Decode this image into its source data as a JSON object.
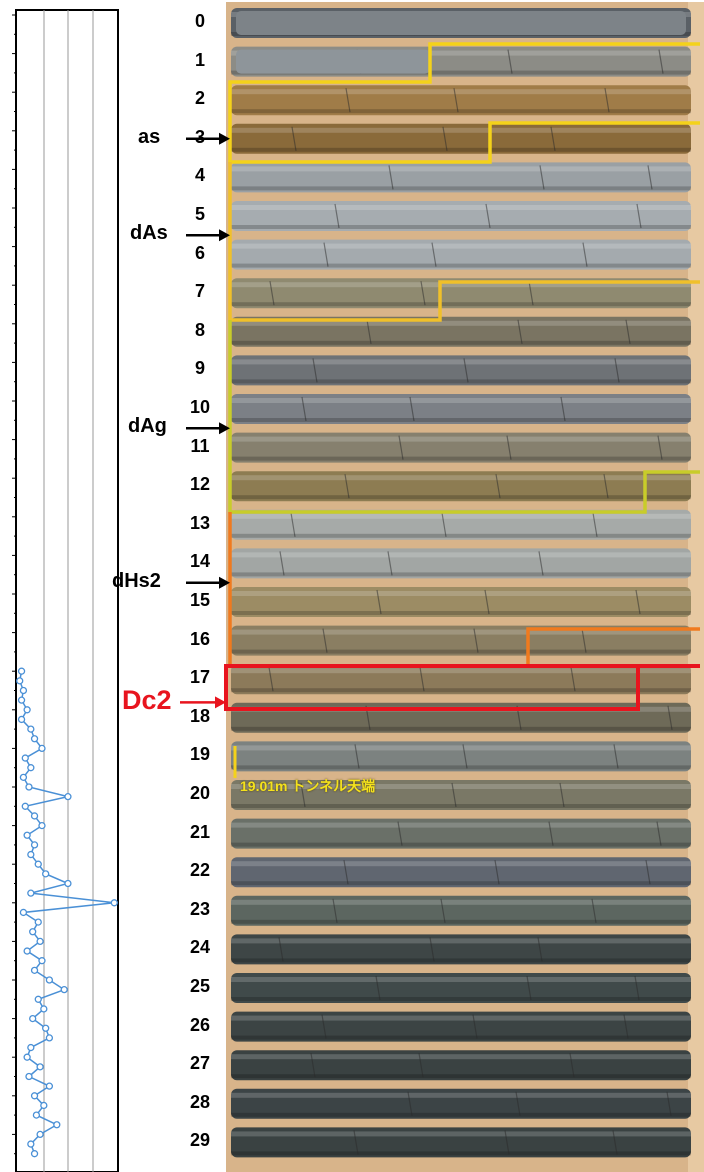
{
  "depth_labels": [
    "0",
    "1",
    "2",
    "3",
    "4",
    "5",
    "6",
    "7",
    "8",
    "9",
    "10",
    "11",
    "12",
    "13",
    "14",
    "15",
    "16",
    "17",
    "18",
    "19",
    "20",
    "21",
    "22",
    "23",
    "24",
    "25",
    "26",
    "27",
    "28",
    "29"
  ],
  "units": [
    {
      "label": "as",
      "arrow_depth": 3
    },
    {
      "label": "dAs",
      "arrow_depth": 5.5
    },
    {
      "label": "dAg",
      "arrow_depth": 10.5
    },
    {
      "label": "dHs2",
      "arrow_depth": 14.5
    },
    {
      "label": "Dc2",
      "arrow_depth": 17.6
    }
  ],
  "tunnel_note": "19.01m トンネル天端",
  "colors": {
    "as_boundary": "#f4d21a",
    "dAs_boundary": "#f0c02a",
    "dAg_boundary": "#c8cc2a",
    "dHs2_boundary": "#f07a1e",
    "Dc2_boundary": "#e8141e",
    "plot_line": "#4a90d6",
    "box_frame": "#c9905a"
  },
  "chart_data": {
    "type": "line",
    "orientation": "vertical",
    "title": "",
    "xlabel": "",
    "ylabel": "",
    "y": [
      17.0,
      17.25,
      17.5,
      17.75,
      18.0,
      18.25,
      18.5,
      18.75,
      19.0,
      19.25,
      19.5,
      19.75,
      20.0,
      20.25,
      20.5,
      20.75,
      21.0,
      21.25,
      21.5,
      21.75,
      22.0,
      22.25,
      22.5,
      22.75,
      23.0,
      23.25,
      23.5,
      23.75,
      24.0,
      24.25,
      24.5,
      24.75,
      25.0,
      25.25,
      25.5,
      25.75,
      26.0,
      26.25,
      26.5,
      26.75,
      27.0,
      27.25,
      27.5,
      27.75,
      28.0,
      28.25,
      28.5,
      28.75,
      29.0,
      29.25,
      29.5
    ],
    "values": [
      0.3,
      0.2,
      0.4,
      0.3,
      0.6,
      0.3,
      0.8,
      1.0,
      1.4,
      0.5,
      0.8,
      0.4,
      0.7,
      2.8,
      0.5,
      1.0,
      1.4,
      0.6,
      1.0,
      0.8,
      1.2,
      1.6,
      2.8,
      0.8,
      5.3,
      0.4,
      1.2,
      0.9,
      1.3,
      0.6,
      1.4,
      1.0,
      1.8,
      2.6,
      1.2,
      1.5,
      0.9,
      1.6,
      1.8,
      0.8,
      0.6,
      1.3,
      0.7,
      1.8,
      1.0,
      1.5,
      1.1,
      2.2,
      1.3,
      0.8,
      1.0
    ],
    "xlim": [
      0,
      5.5
    ],
    "ylim": [
      -0.3,
      29.8
    ],
    "grid": true
  }
}
